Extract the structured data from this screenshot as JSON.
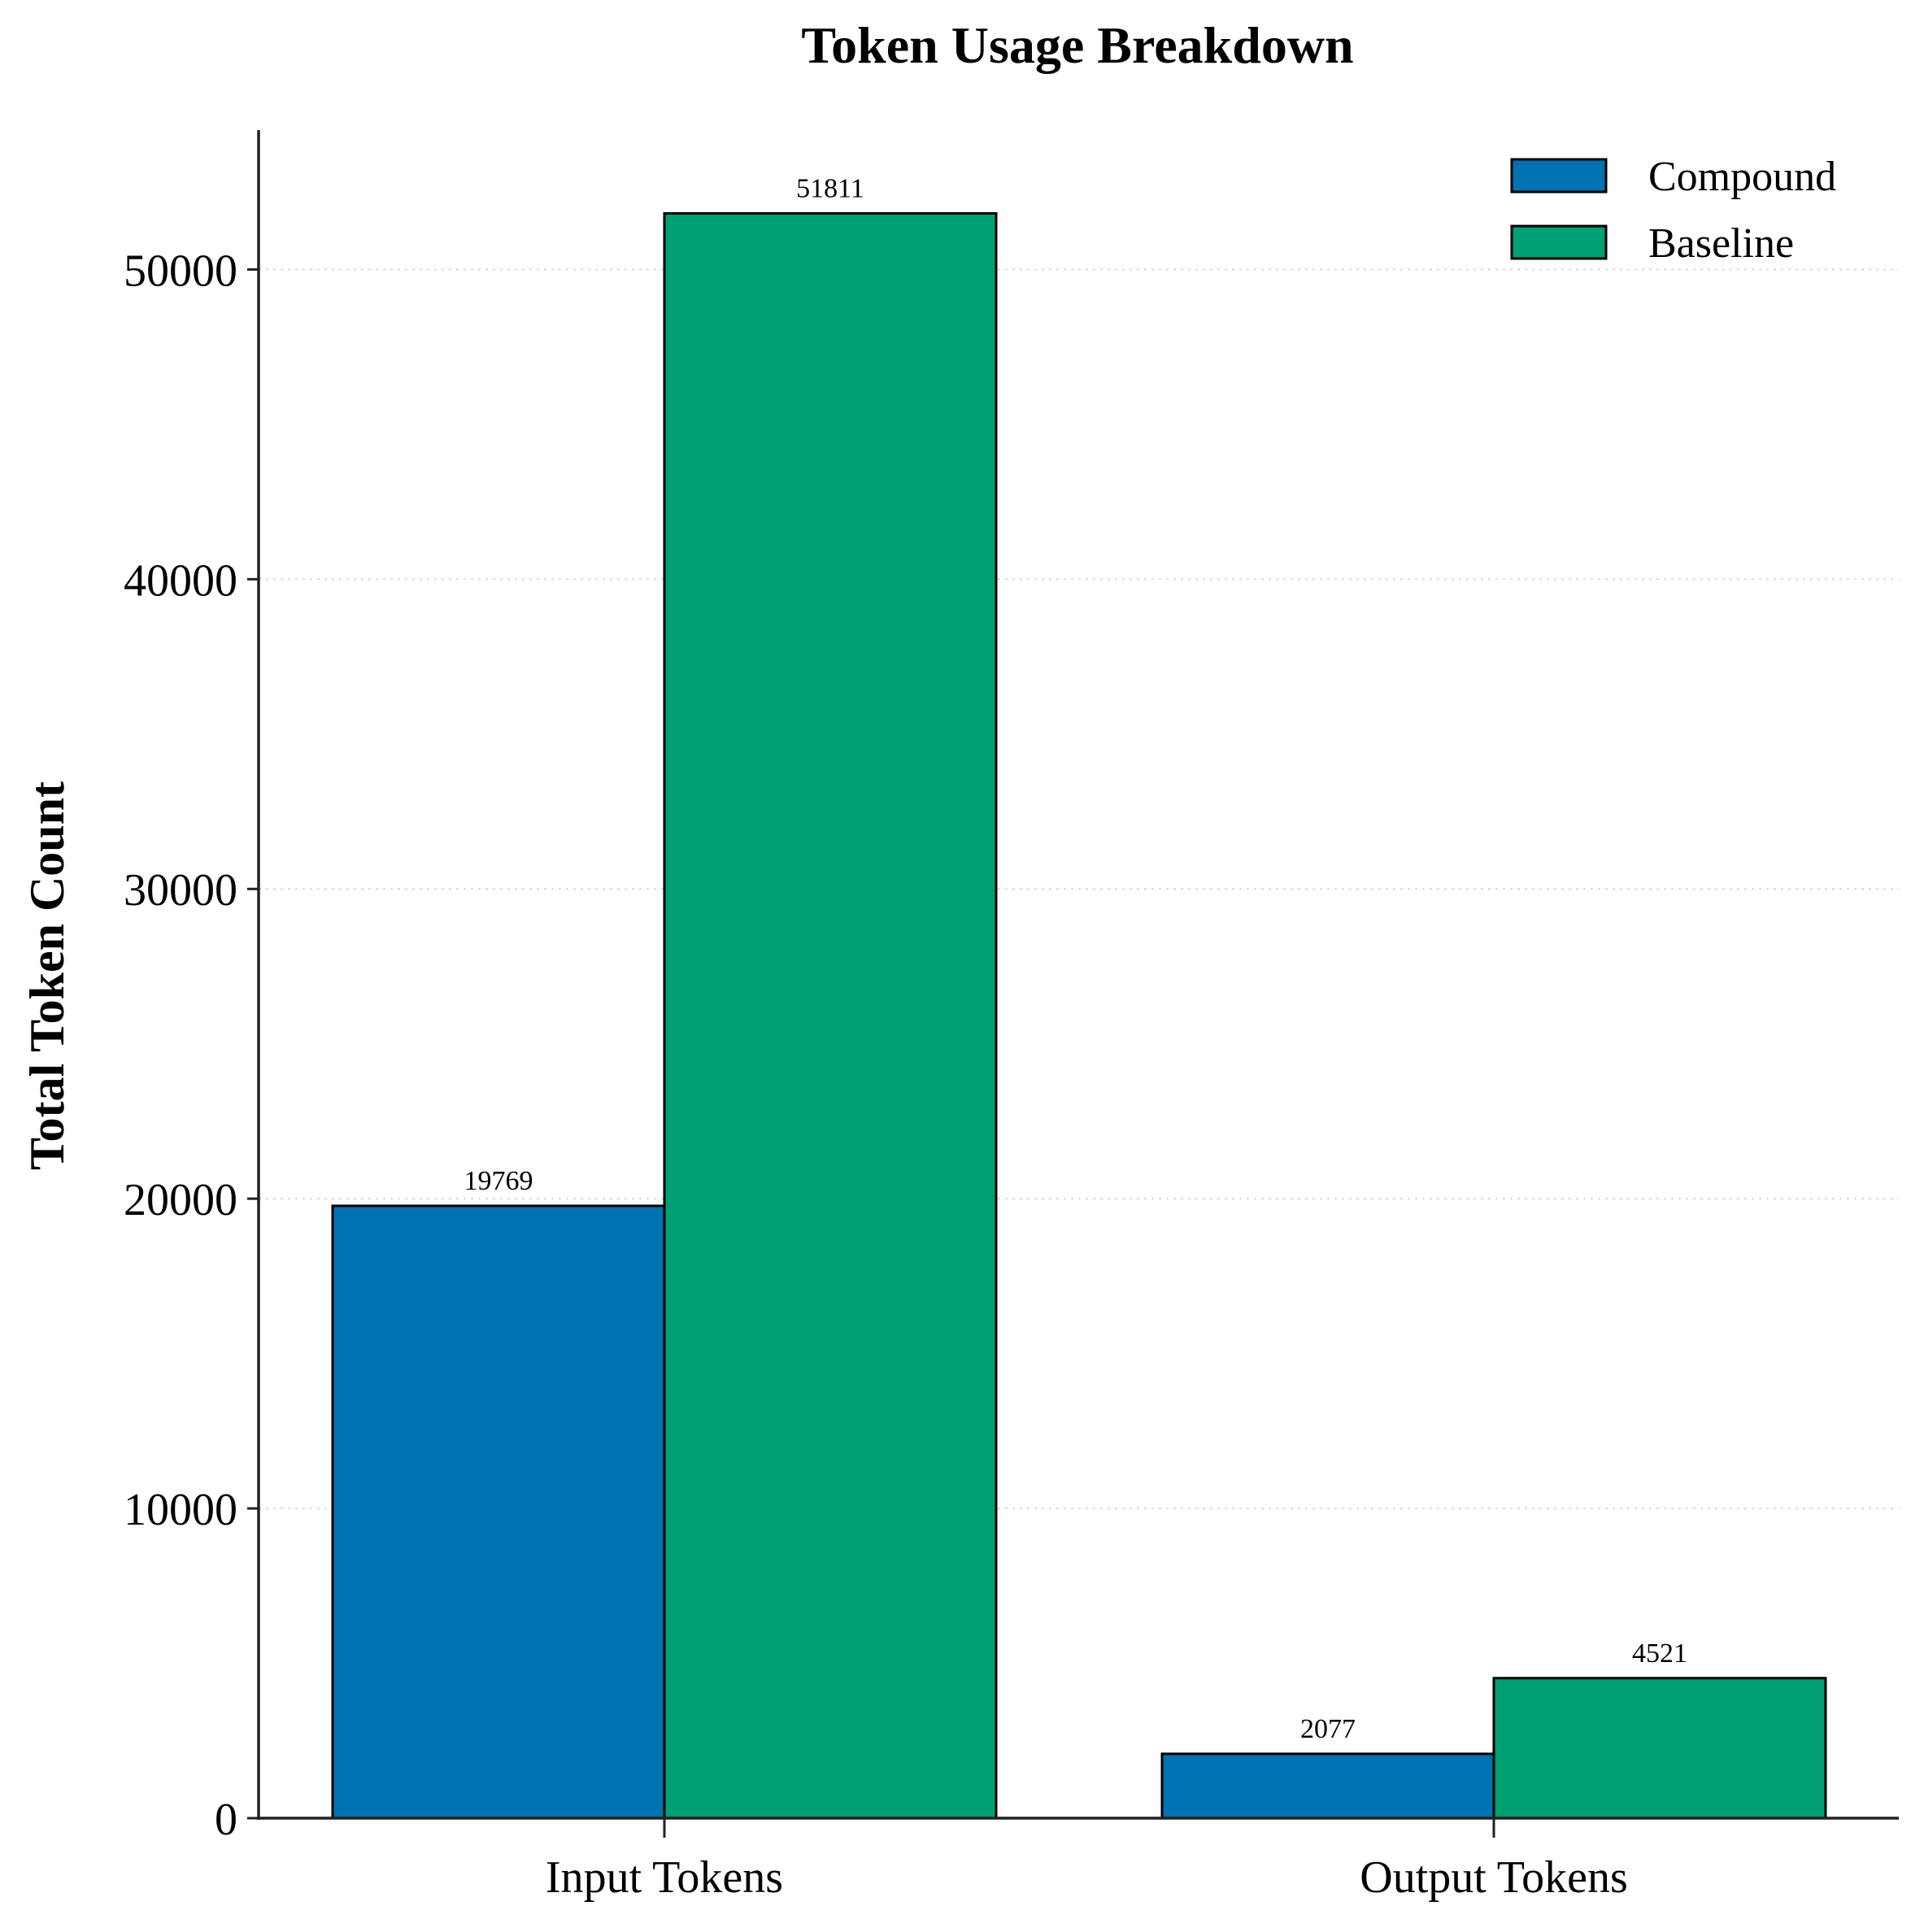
{
  "chart_data": {
    "type": "bar",
    "title": "Token Usage Breakdown",
    "xlabel": "",
    "ylabel": "Total Token Count",
    "categories": [
      "Input Tokens",
      "Output Tokens"
    ],
    "series": [
      {
        "name": "Compound",
        "values": [
          19769,
          2077
        ],
        "color": "#0072B2"
      },
      {
        "name": "Baseline",
        "values": [
          51811,
          4521
        ],
        "color": "#009E73"
      }
    ],
    "ylim": [
      0,
      54500
    ],
    "yticks": [
      0,
      10000,
      20000,
      30000,
      40000,
      50000
    ],
    "grid": "y-dotted",
    "legend": "top-right",
    "value_labels": true
  }
}
